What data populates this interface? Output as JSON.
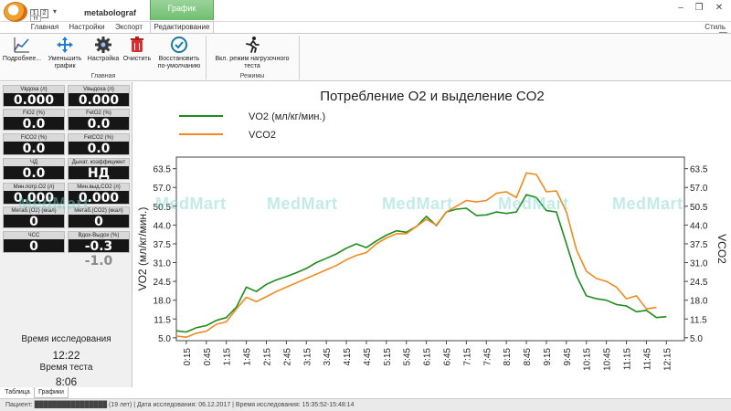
{
  "window": {
    "title": "metabolograf",
    "context_tab": "График",
    "quick_access": [
      "1",
      "2"
    ],
    "quick_access_hint": "H",
    "controls": [
      "‒",
      "❐",
      "✕"
    ]
  },
  "ribbon": {
    "tabs": [
      "Главная",
      "Настройки",
      "Экспорт",
      "Редактирование"
    ],
    "active_tab": "Редактирование",
    "style_label": "Стиль",
    "style_key": "S",
    "groups": [
      {
        "label": "Главная",
        "buttons": [
          {
            "label": "Подробнее...",
            "icon": "chart-detail-icon"
          },
          {
            "label": "Уменьшить график",
            "icon": "shrink-arrows-icon"
          },
          {
            "label": "Настройка",
            "icon": "gear-icon"
          },
          {
            "label": "Очистить",
            "icon": "trash-icon"
          },
          {
            "label": "Восстановить по-умолчанию",
            "icon": "restore-icon"
          }
        ]
      },
      {
        "label": "Режимы",
        "buttons": [
          {
            "label": "Вкл. режим нагрузочного теста",
            "icon": "runner-icon"
          }
        ]
      }
    ]
  },
  "tiles": [
    {
      "label": "Vвдоха (л)",
      "value": "0.000"
    },
    {
      "label": "Vвыдоха (л)",
      "value": "0.000"
    },
    {
      "label": "FiO2 (%)",
      "value": "0.0"
    },
    {
      "label": "FetO2 (%)",
      "value": "0.0"
    },
    {
      "label": "FiCO2 (%)",
      "value": "0.0"
    },
    {
      "label": "FetCO2 (%)",
      "value": "0.0"
    },
    {
      "label": "ЧД",
      "value": "0.0"
    },
    {
      "label": "Дыхат. коэффициент",
      "value": "НД"
    },
    {
      "label": "Мин.потр.O2  (л)",
      "value": "0.000"
    },
    {
      "label": "Мин.выд.CO2 (л)",
      "value": "0.000"
    },
    {
      "label": "Метаб.(O2) (ккал)",
      "value": "0"
    },
    {
      "label": "Метаб.(CO2) (ккал)",
      "value": "0"
    },
    {
      "label": "ЧСС",
      "value": "0"
    },
    {
      "label": "Вдох-Выдох (%)",
      "value": "-0.3",
      "value_muted": "-1.0"
    }
  ],
  "study": {
    "time_label": "Время исследования",
    "time_value": "12:22",
    "test_label": "Время теста",
    "test_value": "8:06"
  },
  "bottom_tabs": [
    "Таблица",
    "Графики"
  ],
  "active_bottom_tab": "Графики",
  "status": {
    "text": "Пациент: ████████████████ (19 лет) | Дата исследования: 06.12.2017 | Время исследования: 15:35:52-15:48:14"
  },
  "watermark": "MedMart",
  "chart_data": {
    "type": "line",
    "title": "Потребление O2 и выделение CO2",
    "ylabel_left": "VO2 (мл/кг/мин.)",
    "ylabel_right": "VCO2",
    "yticks": [
      5.0,
      11.5,
      18.0,
      24.5,
      31.0,
      37.5,
      44.0,
      50.5,
      57.0,
      63.5
    ],
    "ylim": [
      4.0,
      67.5
    ],
    "xticks": [
      "0:15",
      "0:45",
      "1:15",
      "1:45",
      "2:15",
      "2:45",
      "3:15",
      "3:45",
      "4:15",
      "4:45",
      "5:15",
      "5:45",
      "6:15",
      "6:45",
      "7:15",
      "7:45",
      "8:15",
      "8:45",
      "9:15",
      "9:45",
      "10:15",
      "10:45",
      "11:15",
      "11:45",
      "12:15"
    ],
    "x_minutes_range": [
      0.0,
      12.7
    ],
    "legend_position": "top-left",
    "series": [
      {
        "name": "VO2 (мл/кг/мин.)",
        "color": "#1e8c1e",
        "points": [
          [
            0.0,
            7.4
          ],
          [
            0.25,
            7.0
          ],
          [
            0.5,
            8.5
          ],
          [
            0.75,
            9.2
          ],
          [
            1.0,
            11.0
          ],
          [
            1.25,
            12.0
          ],
          [
            1.5,
            15.6
          ],
          [
            1.75,
            22.5
          ],
          [
            2.0,
            21.0
          ],
          [
            2.25,
            23.5
          ],
          [
            2.5,
            25.0
          ],
          [
            2.75,
            26.2
          ],
          [
            3.0,
            27.5
          ],
          [
            3.25,
            29.0
          ],
          [
            3.5,
            31.0
          ],
          [
            3.75,
            32.5
          ],
          [
            4.0,
            34.0
          ],
          [
            4.25,
            36.0
          ],
          [
            4.5,
            37.5
          ],
          [
            4.75,
            36.2
          ],
          [
            5.0,
            38.5
          ],
          [
            5.25,
            40.5
          ],
          [
            5.5,
            42.0
          ],
          [
            5.75,
            41.5
          ],
          [
            6.0,
            43.5
          ],
          [
            6.25,
            47.0
          ],
          [
            6.5,
            43.8
          ],
          [
            6.75,
            48.5
          ],
          [
            7.0,
            49.5
          ],
          [
            7.25,
            49.8
          ],
          [
            7.5,
            47.3
          ],
          [
            7.75,
            47.5
          ],
          [
            8.0,
            48.5
          ],
          [
            8.25,
            48.0
          ],
          [
            8.5,
            48.5
          ],
          [
            8.75,
            54.5
          ],
          [
            9.0,
            53.5
          ],
          [
            9.25,
            49.0
          ],
          [
            9.5,
            48.5
          ],
          [
            9.75,
            37.5
          ],
          [
            10.0,
            26.5
          ],
          [
            10.25,
            19.5
          ],
          [
            10.5,
            18.5
          ],
          [
            10.75,
            18.0
          ],
          [
            11.0,
            16.5
          ],
          [
            11.25,
            16.0
          ],
          [
            11.5,
            14.0
          ],
          [
            11.75,
            14.5
          ],
          [
            12.0,
            12.0
          ],
          [
            12.25,
            12.3
          ]
        ]
      },
      {
        "name": "VCO2",
        "color": "#f08a1c",
        "points": [
          [
            0.0,
            5.6
          ],
          [
            0.25,
            5.2
          ],
          [
            0.5,
            6.6
          ],
          [
            0.75,
            7.3
          ],
          [
            1.0,
            9.7
          ],
          [
            1.25,
            10.5
          ],
          [
            1.5,
            15.0
          ],
          [
            1.75,
            19.0
          ],
          [
            2.0,
            17.5
          ],
          [
            2.25,
            19.2
          ],
          [
            2.5,
            21.0
          ],
          [
            2.75,
            22.5
          ],
          [
            3.0,
            24.0
          ],
          [
            3.25,
            25.5
          ],
          [
            3.5,
            27.0
          ],
          [
            3.75,
            28.5
          ],
          [
            4.0,
            30.0
          ],
          [
            4.25,
            32.0
          ],
          [
            4.5,
            33.5
          ],
          [
            4.75,
            34.5
          ],
          [
            5.0,
            37.5
          ],
          [
            5.25,
            39.5
          ],
          [
            5.5,
            41.0
          ],
          [
            5.75,
            41.0
          ],
          [
            6.0,
            43.5
          ],
          [
            6.25,
            46.0
          ],
          [
            6.5,
            44.0
          ],
          [
            6.75,
            48.5
          ],
          [
            7.0,
            50.5
          ],
          [
            7.25,
            52.5
          ],
          [
            7.5,
            52.0
          ],
          [
            7.75,
            52.5
          ],
          [
            8.0,
            55.0
          ],
          [
            8.25,
            55.5
          ],
          [
            8.5,
            53.5
          ],
          [
            8.75,
            62.0
          ],
          [
            9.0,
            61.5
          ],
          [
            9.25,
            55.5
          ],
          [
            9.5,
            55.8
          ],
          [
            9.75,
            48.5
          ],
          [
            10.0,
            35.5
          ],
          [
            10.25,
            28.0
          ],
          [
            10.5,
            25.5
          ],
          [
            10.75,
            24.5
          ],
          [
            11.0,
            22.5
          ],
          [
            11.25,
            18.5
          ],
          [
            11.5,
            19.5
          ],
          [
            11.75,
            15.0
          ],
          [
            12.0,
            15.5
          ]
        ]
      }
    ]
  }
}
